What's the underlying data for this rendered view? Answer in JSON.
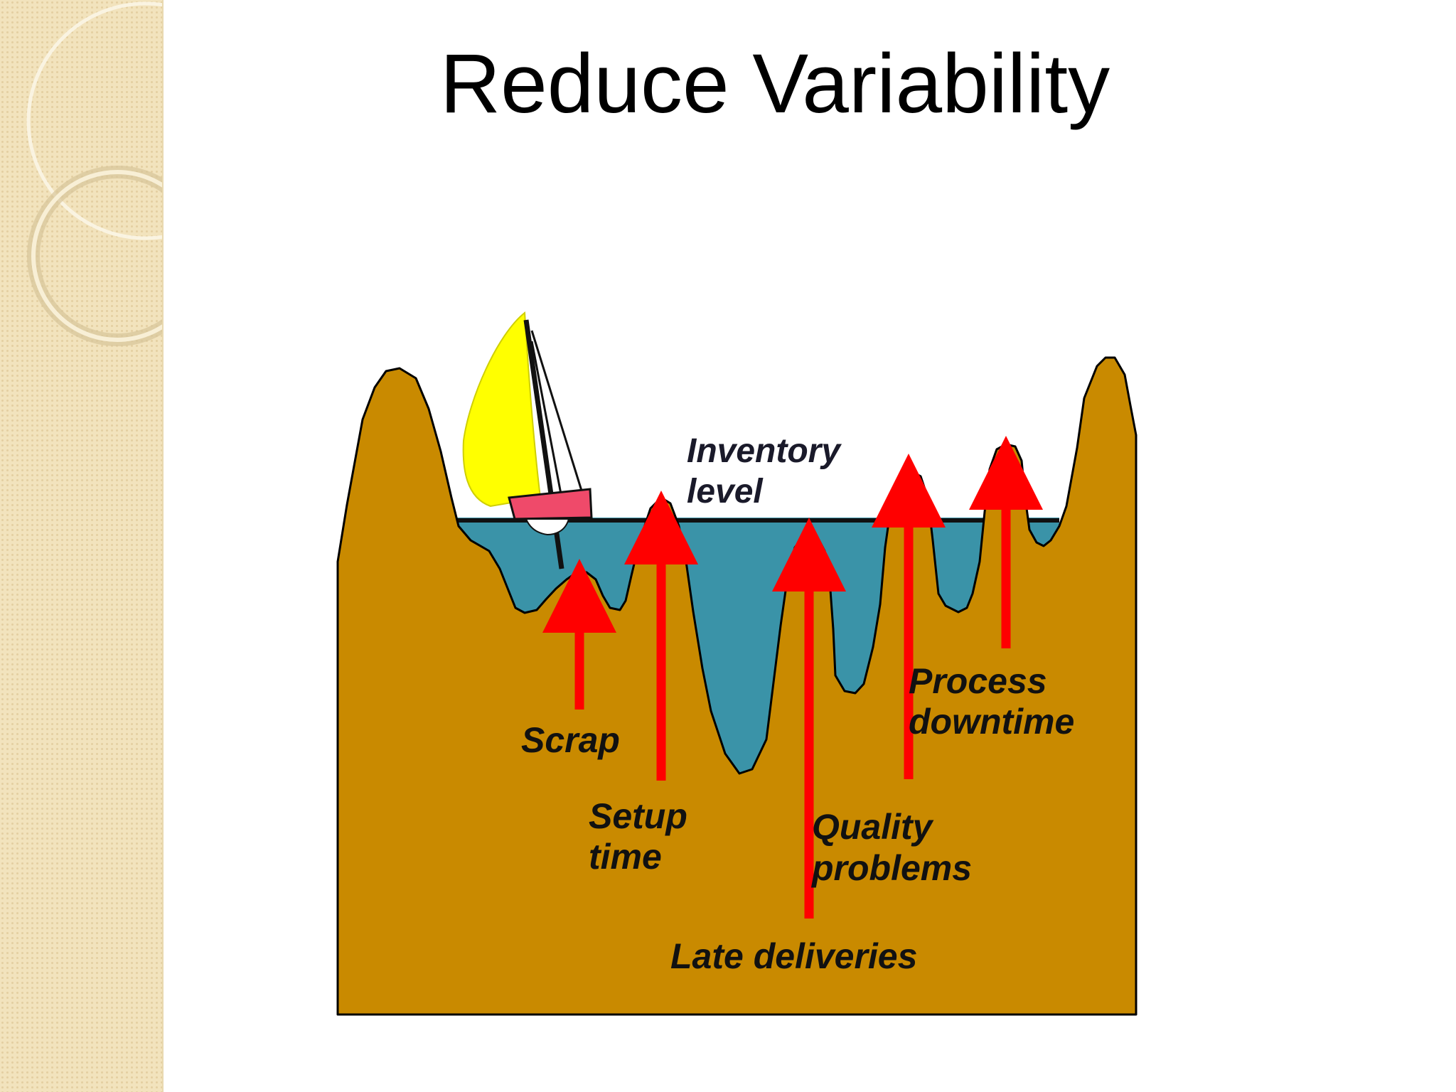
{
  "slide": {
    "title": "Reduce Variability"
  },
  "diagram": {
    "inventory_label": {
      "line1": "Inventory",
      "line2": "level"
    },
    "problems": {
      "scrap": "Scrap",
      "setup_time": {
        "line1": "Setup",
        "line2": "time"
      },
      "late_deliveries": "Late deliveries",
      "quality_problems": {
        "line1": "Quality",
        "line2": "problems"
      },
      "process_downtime": {
        "line1": "Process",
        "line2": "downtime"
      }
    },
    "colors": {
      "ground": "#c98a00",
      "water": "#3a93a8",
      "sail": "#ffff00",
      "hull": "#ef4a6a",
      "arrow": "#ff0000",
      "side_panel": "#f2e3bd"
    }
  }
}
